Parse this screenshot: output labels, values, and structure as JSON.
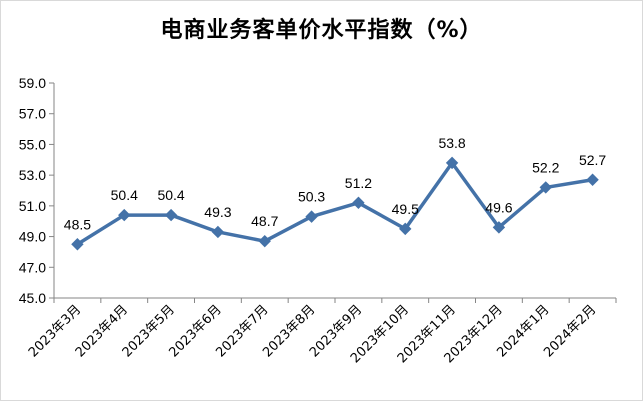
{
  "chart_data": {
    "type": "line",
    "title": "电商业务客单价水平指数（%）",
    "categories": [
      "2023年3月",
      "2023年4月",
      "2023年5月",
      "2023年6月",
      "2023年7月",
      "2023年8月",
      "2023年9月",
      "2023年10月",
      "2023年11月",
      "2023年12月",
      "2024年1月",
      "2024年2月"
    ],
    "series": [
      {
        "values": [
          48.5,
          50.4,
          50.4,
          49.3,
          48.7,
          50.3,
          51.2,
          49.5,
          53.8,
          49.6,
          52.2,
          52.7
        ]
      }
    ],
    "data_labels": [
      "48.5",
      "50.4",
      "50.4",
      "49.3",
      "48.7",
      "50.3",
      "51.2",
      "49.5",
      "53.8",
      "49.6",
      "52.2",
      "52.7"
    ],
    "ylim": [
      45.0,
      59.0
    ],
    "yticks": [
      "45.0",
      "47.0",
      "49.0",
      "51.0",
      "53.0",
      "55.0",
      "57.0",
      "59.0"
    ],
    "grid": false,
    "legend": "none",
    "line_color": "#4472A8"
  }
}
